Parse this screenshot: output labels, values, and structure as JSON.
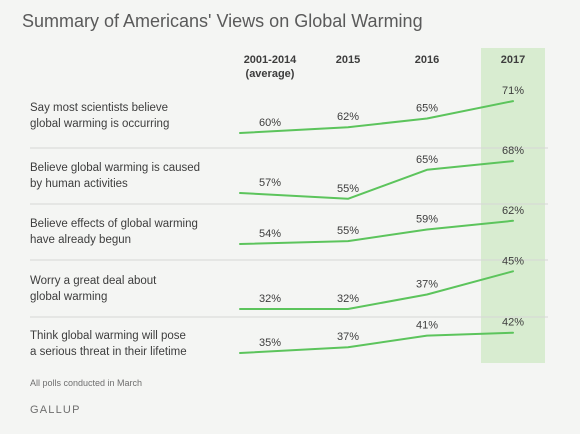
{
  "title": "Summary of Americans' Views on Global Warming",
  "footnote": "All polls conducted in March",
  "source": "GALLUP",
  "colors": {
    "line": "#5cc45c",
    "highlight": "#d8ecd0",
    "divider": "#d6d6d6",
    "background": "#f4f5f3"
  },
  "chart_data": {
    "type": "line",
    "highlighted_category": "2017",
    "x": [
      {
        "line1": "2001-2014",
        "line2": "(average)"
      },
      {
        "line1": "2015",
        "line2": ""
      },
      {
        "line1": "2016",
        "line2": ""
      },
      {
        "line1": "2017",
        "line2": ""
      }
    ],
    "series": [
      {
        "label_line1": "Say most scientists believe",
        "label_line2": "global warming is occurring",
        "values": [
          60,
          62,
          65,
          71
        ]
      },
      {
        "label_line1": "Believe global warming is caused",
        "label_line2": "by human activities",
        "values": [
          57,
          55,
          65,
          68
        ]
      },
      {
        "label_line1": "Believe effects of global warming",
        "label_line2": "have already begun",
        "values": [
          54,
          55,
          59,
          62
        ]
      },
      {
        "label_line1": "Worry a great deal about",
        "label_line2": "global warming",
        "values": [
          32,
          32,
          37,
          45
        ]
      },
      {
        "label_line1": "Think global warming will pose",
        "label_line2": "a serious threat in their lifetime",
        "values": [
          35,
          37,
          41,
          42
        ]
      }
    ],
    "value_suffix": "%"
  }
}
